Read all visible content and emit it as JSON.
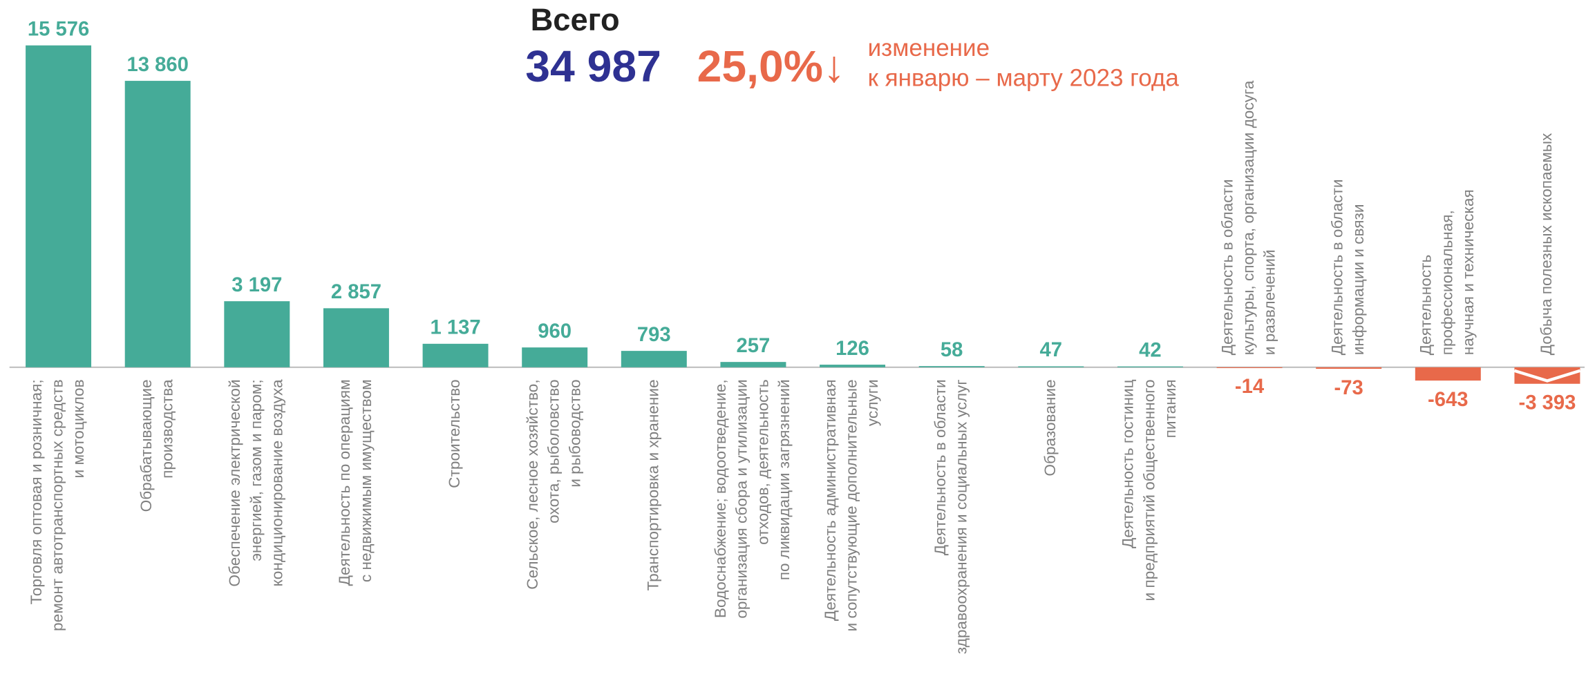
{
  "chart_data": {
    "type": "bar",
    "title": "Всего",
    "total": "34 987",
    "change": "25,0%↓",
    "subtitle": [
      "изменение",
      "к январю – марту 2023 года"
    ],
    "categories": [
      "Торговля оптовая и розничная;\nремонт автотранспортных средств\nи мотоциклов",
      "Обрабатывающие\nпроизводства",
      "Обеспечение электрической\nэнергией, газом и паром;\nкондиционирование воздуха",
      "Деятельность по операциям\nс недвижимым имуществом",
      "Строительство",
      "Сельское, лесное хозяйство,\nохота, рыболовство\nи рыбоводство",
      "Транспортировка и хранение",
      "Водоснабжение; водоотведение,\nорганизация сбора и утилизации\nотходов, деятельность\nпо ликвидации загрязнений",
      "Деятельность административная\nи сопутствующие дополнительные\nуслуги",
      "Деятельность в области\nздравоохранения и социальных услуг",
      "Образование",
      "Деятельность  гостиниц\nи предприятий общественного\nпитания",
      "Деятельность в области\nкультуры, спорта, организации досуга\nи развлечений",
      "Деятельность в области\nинформации и связи",
      "Деятельность\nпрофессиональная,\nнаучная и техническая",
      "Добыча полезных  ископаемых"
    ],
    "values": [
      15576,
      13860,
      3197,
      2857,
      1137,
      960,
      793,
      257,
      126,
      58,
      47,
      42,
      -14,
      -73,
      -643,
      -3393
    ],
    "value_labels": [
      "15 576",
      "13 860",
      "3 197",
      "2 857",
      "1 137",
      "960",
      "793",
      "257",
      "126",
      "58",
      "47",
      "42",
      "-14",
      "-73",
      "-643",
      "-3 393"
    ],
    "color": "#45ab98",
    "negative_color": "#e8694a",
    "ylim": [
      -800,
      16000
    ]
  }
}
